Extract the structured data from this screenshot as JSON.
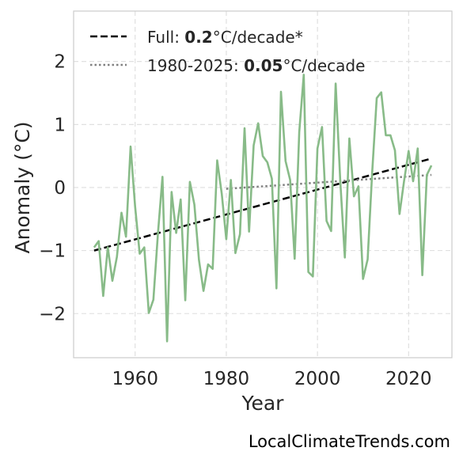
{
  "chart_data": {
    "type": "line",
    "xlabel": "Year",
    "ylabel": "Anomaly (°C)",
    "xlim": [
      1946.5,
      2029.5
    ],
    "ylim": [
      -2.7,
      2.8
    ],
    "xticks": [
      "1960",
      "1980",
      "2000",
      "2020"
    ],
    "xtick_values": [
      1960,
      1980,
      2000,
      2020
    ],
    "yticks": [
      "−2",
      "−1",
      "0",
      "1",
      "2"
    ],
    "ytick_values": [
      -2,
      -1,
      0,
      1,
      2
    ],
    "grid": true,
    "legend_position": "top-left",
    "colors": {
      "series": "#88bb88",
      "full_trend": "#000000",
      "recent_trend": "#808080"
    },
    "series": [
      {
        "x": [
          1951,
          1952,
          1953,
          1954,
          1955,
          1956,
          1957,
          1958,
          1959,
          1960,
          1961,
          1962,
          1963,
          1964,
          1965,
          1966,
          1967,
          1968,
          1969,
          1970,
          1971,
          1972,
          1973,
          1974,
          1975,
          1976,
          1977,
          1978,
          1979,
          1980,
          1981,
          1982,
          1983,
          1984,
          1985,
          1986,
          1987,
          1988,
          1989,
          1990,
          1991,
          1992,
          1993,
          1994,
          1995,
          1996,
          1997,
          1998,
          1999,
          2000,
          2001,
          2002,
          2003,
          2004,
          2005,
          2006,
          2007,
          2008,
          2009,
          2010,
          2011,
          2012,
          2013,
          2014,
          2015,
          2016,
          2017,
          2018,
          2019,
          2020,
          2021,
          2022,
          2023,
          2024,
          2025
        ],
        "y": [
          -0.95,
          -0.85,
          -1.72,
          -0.95,
          -1.48,
          -1.1,
          -0.4,
          -0.78,
          0.65,
          -0.3,
          -1.05,
          -0.95,
          -1.99,
          -1.78,
          -0.74,
          0.17,
          -2.44,
          -0.07,
          -0.72,
          -0.19,
          -1.79,
          0.09,
          -0.27,
          -1.15,
          -1.64,
          -1.22,
          -1.29,
          0.43,
          -0.1,
          -0.82,
          0.12,
          -1.04,
          -0.74,
          0.94,
          -0.7,
          0.67,
          1.02,
          0.5,
          0.4,
          0.14,
          -1.6,
          1.52,
          0.42,
          0.12,
          -1.13,
          0.88,
          1.79,
          -1.34,
          -1.41,
          0.62,
          0.96,
          -0.53,
          -0.69,
          1.65,
          0.11,
          -1.11,
          0.78,
          -0.14,
          0.02,
          -1.45,
          -1.14,
          0.23,
          1.42,
          1.51,
          0.83,
          0.83,
          0.59,
          -0.42,
          0.1,
          0.58,
          0.1,
          0.62,
          -1.39,
          0.2,
          0.35
        ]
      }
    ],
    "trends": [
      {
        "x": [
          1951,
          2025
        ],
        "y": [
          -1.0,
          0.46
        ],
        "style": "dashed"
      },
      {
        "x": [
          1980,
          2025
        ],
        "y": [
          -0.02,
          0.2
        ],
        "style": "dotted"
      }
    ],
    "legend": [
      {
        "prefix": "Full: ",
        "bold": "0.2",
        "suffix": "°C/decade*",
        "style": "dashed"
      },
      {
        "prefix": "1980-2025: ",
        "bold": "0.05",
        "suffix": "°C/decade",
        "style": "dotted"
      }
    ]
  },
  "footer": "LocalClimateTrends.com"
}
